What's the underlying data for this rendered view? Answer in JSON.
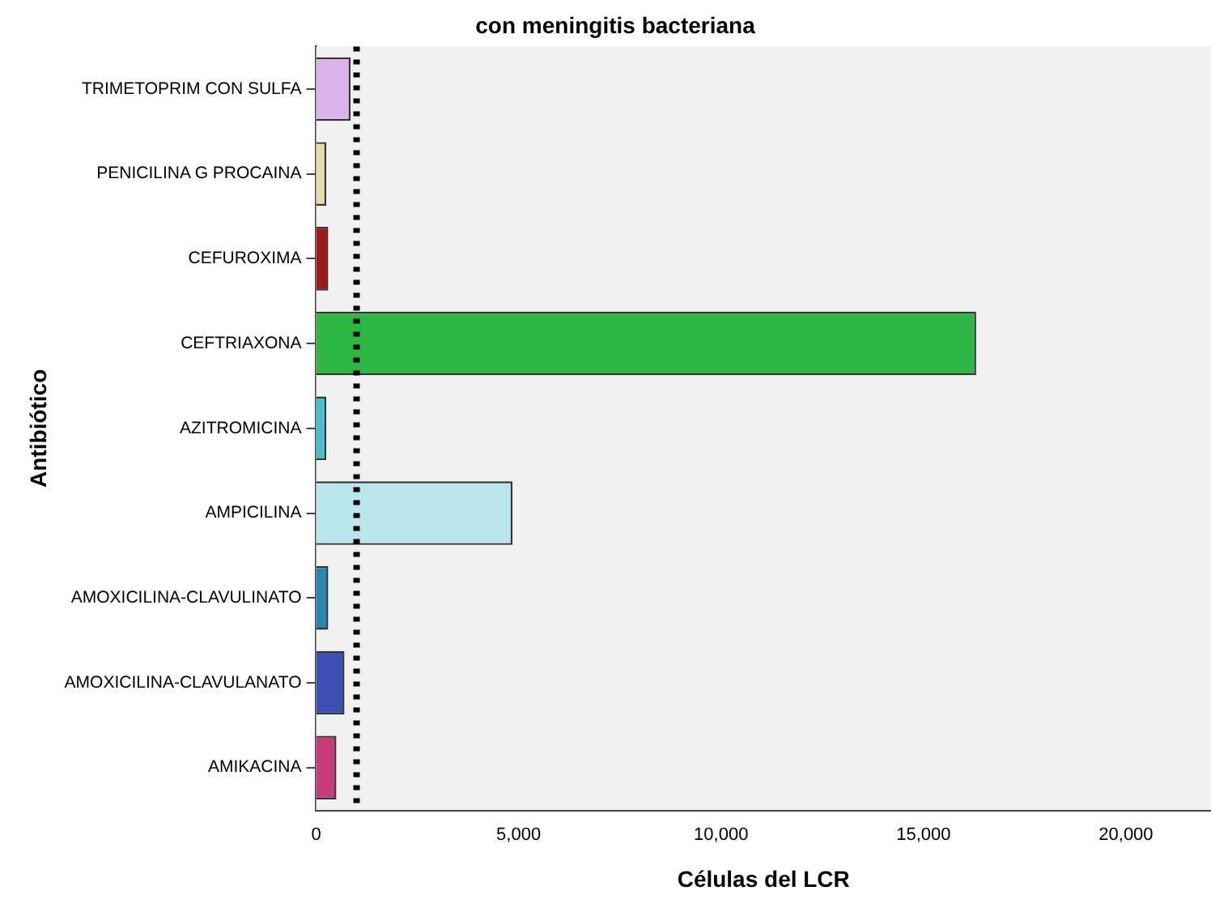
{
  "chart_data": {
    "type": "bar",
    "orientation": "horizontal",
    "title": "con meningitis bacteriana",
    "xlabel": "Células del LCR",
    "ylabel": "Antibiótico",
    "categories": [
      "TRIMETOPRIM CON SULFA",
      "PENICILINA G PROCAINA",
      "CEFUROXIMA",
      "CEFTRIAXONA",
      "AZITROMICINA",
      "AMPICILINA",
      "AMOXICILINA-CLAVULINATO",
      "AMOXICILINA-CLAVULANATO",
      "AMIKACINA"
    ],
    "values": [
      850,
      250,
      300,
      16300,
      250,
      4850,
      300,
      700,
      500
    ],
    "colors": [
      "#dcb4ec",
      "#e8dca8",
      "#a01818",
      "#2db844",
      "#48c0cc",
      "#b8e8ec",
      "#2888b0",
      "#3c50b4",
      "#c83c7c"
    ],
    "xlim": [
      0,
      22100
    ],
    "xticks": [
      {
        "value": 0,
        "label": "0"
      },
      {
        "value": 5000,
        "label": "5,000"
      },
      {
        "value": 10000,
        "label": "10,000"
      },
      {
        "value": 15000,
        "label": "15,000"
      },
      {
        "value": 20000,
        "label": "20,000"
      }
    ],
    "ref_lines": [
      {
        "axis": "x",
        "value": 1000,
        "color": "#000000",
        "line_style": "dotted"
      }
    ],
    "grid": false,
    "legend": false
  }
}
